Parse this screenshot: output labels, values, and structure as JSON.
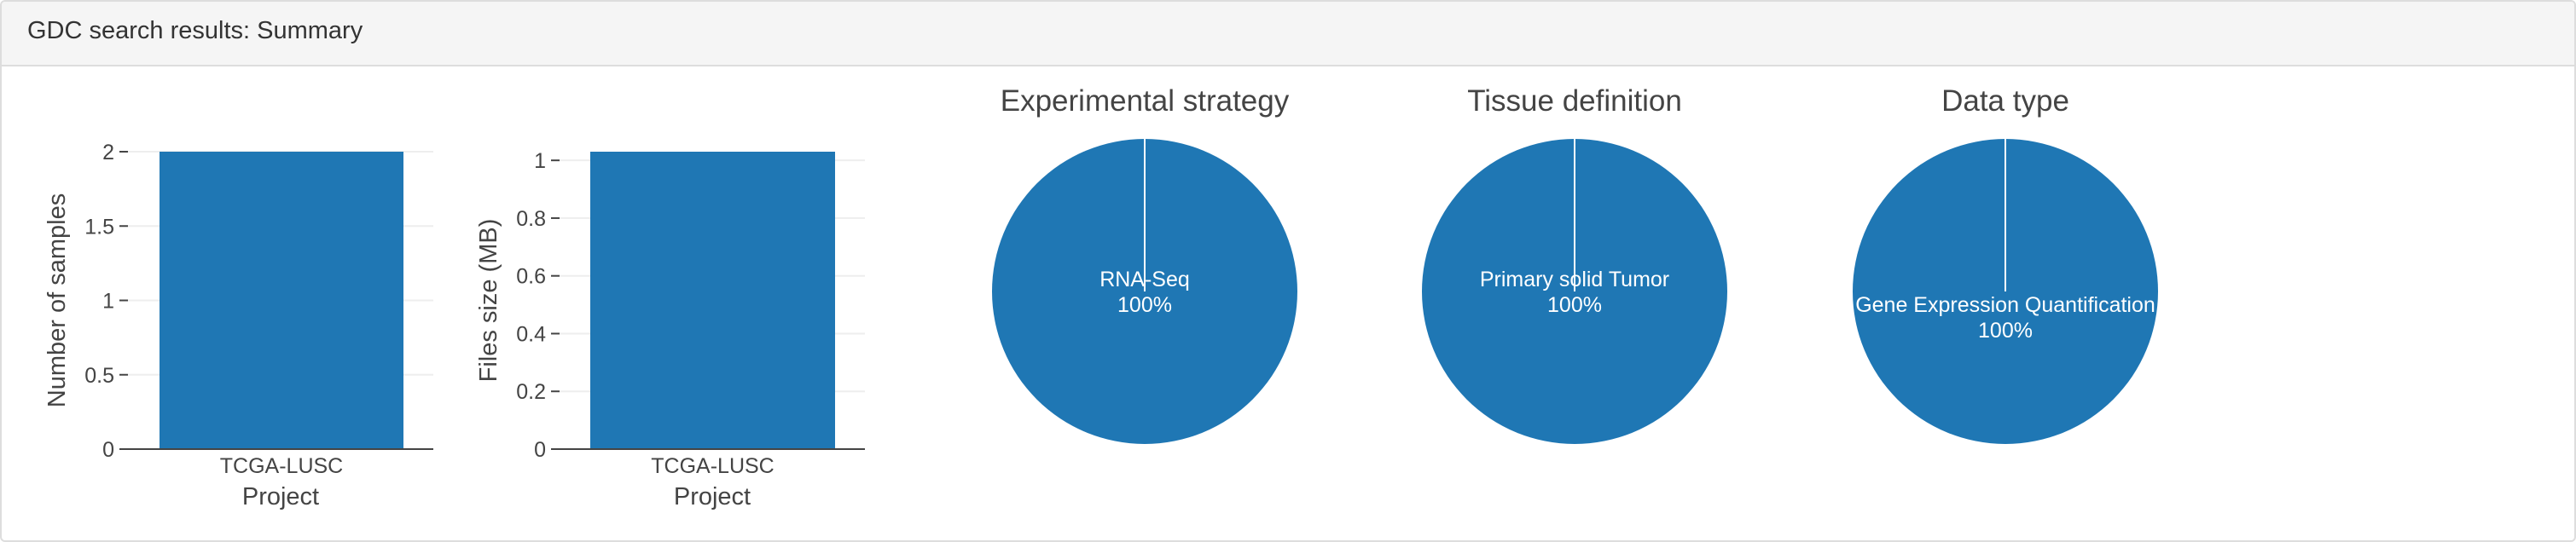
{
  "panel": {
    "title": "GDC search results: Summary"
  },
  "colors": {
    "bar": "#1f77b4",
    "pie": "#1f77b4",
    "slice_label": "#ffffff",
    "axis_text": "#444444",
    "grid": "#eeeeee"
  },
  "chart_data": [
    {
      "type": "bar",
      "categories": [
        "TCGA-LUSC"
      ],
      "values": [
        2
      ],
      "xlabel": "Project",
      "ylabel": "Number of samples",
      "ylim": [
        0,
        2
      ],
      "yticks": [
        "0",
        "0.5",
        "1",
        "1.5",
        "2"
      ],
      "grid": true
    },
    {
      "type": "bar",
      "categories": [
        "TCGA-LUSC"
      ],
      "values": [
        1.03
      ],
      "xlabel": "Project",
      "ylabel": "Files size (MB)",
      "ylim": [
        0,
        1.03
      ],
      "yticks": [
        "0",
        "0.2",
        "0.4",
        "0.6",
        "0.8",
        "1"
      ],
      "grid": true
    },
    {
      "type": "pie",
      "title": "Experimental strategy",
      "slices": [
        {
          "label": "RNA-Seq",
          "percent": "100%",
          "value": 100
        }
      ]
    },
    {
      "type": "pie",
      "title": "Tissue definition",
      "slices": [
        {
          "label": "Primary solid Tumor",
          "percent": "100%",
          "value": 100
        }
      ]
    },
    {
      "type": "pie",
      "title": "Data type",
      "slices": [
        {
          "label": "Gene Expression Quantification",
          "percent": "100%",
          "value": 100
        }
      ]
    }
  ]
}
